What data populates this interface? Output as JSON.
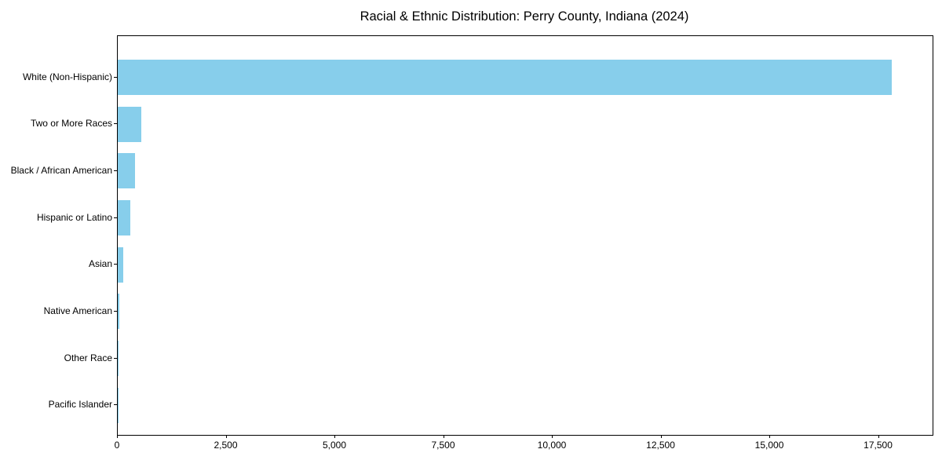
{
  "title": "Racial & Ethnic Distribution: Perry County, Indiana (2024)",
  "chart_data": {
    "type": "bar",
    "orientation": "horizontal",
    "title": "Racial & Ethnic Distribution: Perry County, Indiana (2024)",
    "xlabel": "",
    "ylabel": "",
    "categories": [
      "White (Non-Hispanic)",
      "Two or More Races",
      "Black / African American",
      "Hispanic or Latino",
      "Asian",
      "Native American",
      "Other Race",
      "Pacific Islander"
    ],
    "values": [
      17800,
      540,
      400,
      290,
      130,
      30,
      25,
      5
    ],
    "x_ticks": [
      0,
      2500,
      5000,
      7500,
      10000,
      12500,
      15000,
      17500
    ],
    "x_tick_labels": [
      "0",
      "2,500",
      "5,000",
      "7,500",
      "10,000",
      "12,500",
      "15,000",
      "17,500"
    ],
    "xlim": [
      0,
      18736
    ],
    "bar_color": "#87CEEB",
    "background_color": "#ffffff",
    "spine_color": "#000000",
    "grid": false,
    "legend": null
  }
}
